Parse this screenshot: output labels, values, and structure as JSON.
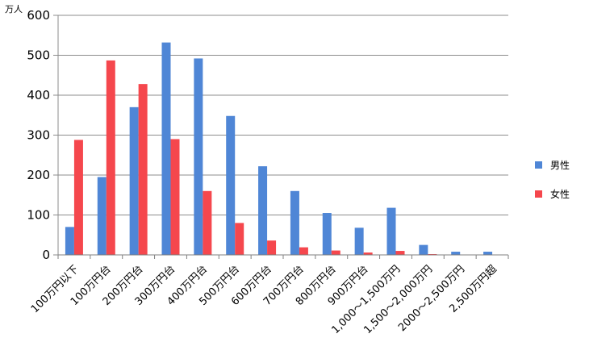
{
  "chart_data": {
    "type": "bar",
    "unit_label": "万人",
    "categories": [
      "100万円以下",
      "100万円台",
      "200万円台",
      "300万円台",
      "400万円台",
      "500万円台",
      "600万円台",
      "700万円台",
      "800万円台",
      "900万円台",
      "1,000～1,500万円",
      "1,500～2,000万円",
      "2000～2,500万円",
      "2,500万円超"
    ],
    "series": [
      {
        "name": "男性",
        "color": "#4f86d6",
        "values": [
          70,
          195,
          370,
          532,
          492,
          348,
          222,
          160,
          105,
          68,
          118,
          25,
          8,
          8
        ]
      },
      {
        "name": "女性",
        "color": "#f5474d",
        "values": [
          288,
          487,
          428,
          290,
          160,
          80,
          36,
          19,
          11,
          6,
          10,
          2,
          1,
          1
        ]
      }
    ],
    "ylim": [
      0,
      600
    ],
    "yticks": [
      0,
      100,
      200,
      300,
      400,
      500,
      600
    ],
    "grid": true,
    "legend_position": "right"
  }
}
